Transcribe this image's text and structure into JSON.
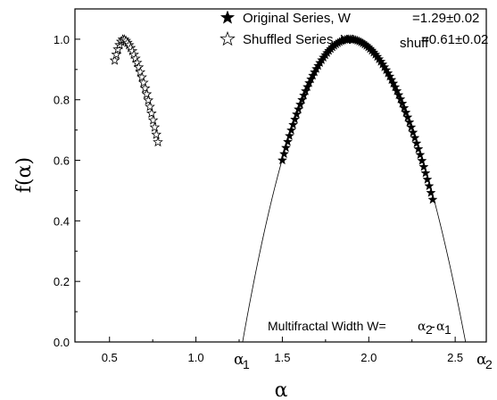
{
  "chart_data": {
    "type": "scatter",
    "xlabel": "α",
    "ylabel": "f(α)",
    "xlim": [
      0.3,
      2.68
    ],
    "ylim": [
      0.0,
      1.1
    ],
    "xticks": [
      "0.5",
      "1.0",
      "1.5",
      "2.0",
      "2.5"
    ],
    "yticks": [
      "0.0",
      "0.2",
      "0.4",
      "0.6",
      "0.8",
      "1.0"
    ],
    "grid": false,
    "legend_placement": "top-right",
    "legend": {
      "original_name": "Original Series, W",
      "original_value": "=1.29±0.02",
      "shuffled_name": "Shuffled Series, W",
      "shuffled_sub": "shuff",
      "shuffled_value": "=0.61±0.02"
    },
    "annotation": {
      "text": "Multifractal Width W= ",
      "alpha": "α",
      "sub2": "2",
      "minus": "-",
      "sub1": "1"
    },
    "alpha_labels": {
      "a1": "α",
      "a1_sub": "1",
      "a2": "α",
      "a2_sub": "2"
    },
    "series": [
      {
        "name": "Original Series, W =1.29±0.02",
        "marker": "filled-star",
        "alpha_min": 1.5,
        "alpha_peak": 1.89,
        "alpha_max": 2.37,
        "f_left": 0.6,
        "f_right": 0.47,
        "points": 85
      },
      {
        "name": "Shuffled Series, W shuff =0.61±0.02",
        "marker": "open-star",
        "alpha_min": 0.53,
        "alpha_peak": 0.58,
        "alpha_max": 0.78,
        "f_left": 0.93,
        "f_right": 0.66,
        "points": 28
      }
    ],
    "fit_curve": {
      "peak_x": 1.89,
      "peak_y": 1.0,
      "left_root": 1.27,
      "right_root": 2.56
    }
  }
}
